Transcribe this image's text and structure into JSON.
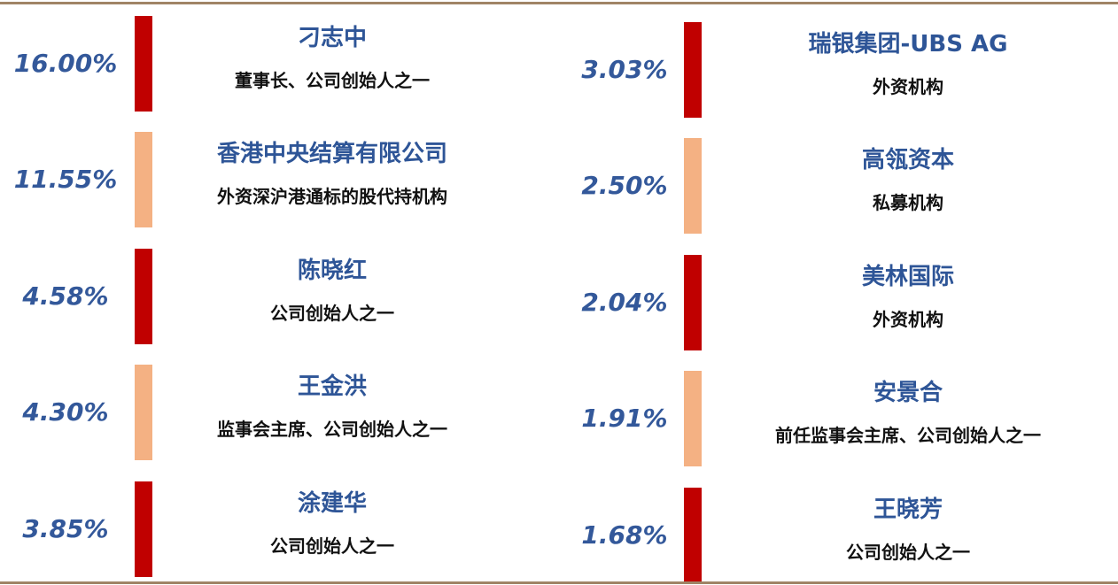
{
  "colors": {
    "bar_dark": "#c00000",
    "bar_light": "#f4b183",
    "percent_text": "#33589a",
    "name_text": "#2e5597",
    "role_text": "#111111",
    "rule": "#a08466"
  },
  "left": [
    {
      "percent": "16.00%",
      "name": "刁志中",
      "role": "董事长、公司创始人之一",
      "bar": "dark"
    },
    {
      "percent": "11.55%",
      "name": "香港中央结算有限公司",
      "role": "外资深沪港通标的股代持机构",
      "bar": "light"
    },
    {
      "percent": "4.58%",
      "name": "陈晓红",
      "role": "公司创始人之一",
      "bar": "dark"
    },
    {
      "percent": "4.30%",
      "name": "王金洪",
      "role": "监事会主席、公司创始人之一",
      "bar": "light"
    },
    {
      "percent": "3.85%",
      "name": "涂建华",
      "role": "公司创始人之一",
      "bar": "dark"
    }
  ],
  "right": [
    {
      "percent": "3.03%",
      "name": "瑞银集团-UBS AG",
      "role": "外资机构",
      "bar": "dark"
    },
    {
      "percent": "2.50%",
      "name": "高瓴资本",
      "role": "私募机构",
      "bar": "light"
    },
    {
      "percent": "2.04%",
      "name": "美林国际",
      "role": "外资机构",
      "bar": "dark"
    },
    {
      "percent": "1.91%",
      "name": "安景合",
      "role": "前任监事会主席、公司创始人之一",
      "bar": "light"
    },
    {
      "percent": "1.68%",
      "name": "王晓芳",
      "role": "公司创始人之一",
      "bar": "dark"
    }
  ]
}
